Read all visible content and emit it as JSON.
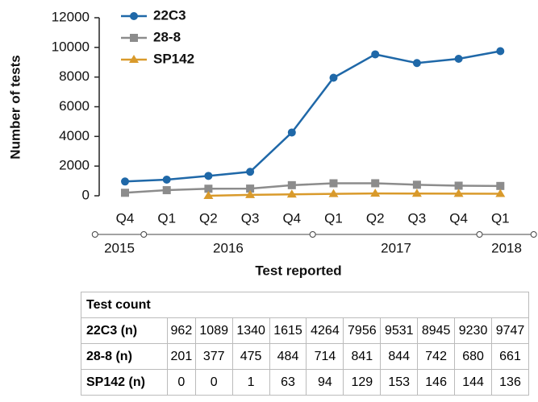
{
  "chart_data": {
    "type": "line",
    "y_label": "Number of tests",
    "x_label": "Test reported",
    "categories": [
      "Q4",
      "Q1",
      "Q2",
      "Q3",
      "Q4",
      "Q1",
      "Q2",
      "Q3",
      "Q4",
      "Q1"
    ],
    "x_groups": [
      "2015",
      "2016",
      "2017",
      "2018"
    ],
    "series": [
      {
        "name": "22C3",
        "color": "#1f68a8",
        "marker": "circle",
        "values": [
          962,
          1089,
          1340,
          1615,
          4264,
          7956,
          9531,
          8945,
          9230,
          9747
        ]
      },
      {
        "name": "28-8",
        "color": "#8c8c8c",
        "marker": "square",
        "values": [
          201,
          377,
          475,
          484,
          714,
          841,
          844,
          742,
          680,
          661
        ]
      },
      {
        "name": "SP142",
        "color": "#d99a2b",
        "marker": "triangle",
        "values": [
          null,
          null,
          1,
          63,
          94,
          129,
          153,
          146,
          144,
          136
        ]
      }
    ],
    "ylim": [
      0,
      12000
    ],
    "yticks": [
      0,
      2000,
      4000,
      6000,
      8000,
      10000,
      12000
    ],
    "grid": false,
    "legend": "top-left"
  },
  "table": {
    "title": "Test count",
    "rows": [
      [
        "22C3 (n)",
        "962",
        "1089",
        "1340",
        "1615",
        "4264",
        "7956",
        "9531",
        "8945",
        "9230",
        "9747"
      ],
      [
        "28-8 (n)",
        "201",
        "377",
        "475",
        "484",
        "714",
        "841",
        "844",
        "742",
        "680",
        "661"
      ],
      [
        "SP142 (n)",
        "0",
        "0",
        "1",
        "63",
        "94",
        "129",
        "153",
        "146",
        "144",
        "136"
      ]
    ]
  }
}
